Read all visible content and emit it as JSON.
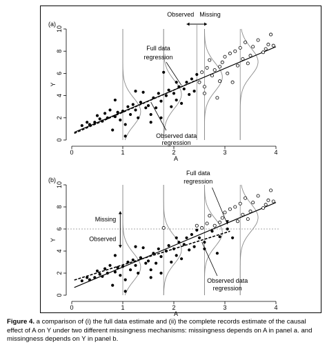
{
  "caption": {
    "label": "Figure 4.",
    "text": "a comparison of (i) the full data estimate and (ii) the complete records estimate of the causal effect of A on Y under two different missingness mechanisms: missingness depends on A in panel a. and missingness depends on Y in panel b."
  },
  "chart_data": [
    {
      "type": "scatter",
      "panel_label": "(a)",
      "xlabel": "A",
      "ylabel": "Y",
      "xlim": [
        0,
        4
      ],
      "ylim": [
        0,
        10
      ],
      "xticks": [
        "0",
        "1",
        "2",
        "3",
        "4"
      ],
      "yticks": [
        "0",
        "2",
        "4",
        "6",
        "8",
        "10"
      ],
      "annotations": {
        "observed": "Observed",
        "missing": "Missing",
        "full_data": [
          "Full data",
          "regression"
        ],
        "observed_data": [
          "Observed data",
          "regression"
        ]
      },
      "cutoff": {
        "axis": "x",
        "value": 2.45
      },
      "full_regression": {
        "intercept": 0.6,
        "slope": 1.95
      },
      "observed_regression": {
        "intercept": 0.5,
        "slope": 2.0,
        "x_range": [
          0.05,
          2.45
        ]
      },
      "density_curves_at_x": [
        1.0,
        1.8,
        2.6,
        3.3
      ],
      "series": [
        {
          "name": "",
          "marker": "filled",
          "points": [
            [
              0.2,
              1.3
            ],
            [
              0.3,
              1.6
            ],
            [
              0.35,
              1.4
            ],
            [
              0.45,
              1.6
            ],
            [
              0.5,
              2.2
            ],
            [
              0.55,
              1.9
            ],
            [
              0.6,
              1.7
            ],
            [
              0.65,
              2.4
            ],
            [
              0.7,
              2.0
            ],
            [
              0.75,
              2.7
            ],
            [
              0.8,
              0.9
            ],
            [
              0.85,
              2.1
            ],
            [
              0.9,
              2.5
            ],
            [
              0.95,
              1.8
            ],
            [
              1.0,
              2.6
            ],
            [
              1.05,
              1.4
            ],
            [
              1.1,
              3.0
            ],
            [
              1.15,
              2.3
            ],
            [
              1.2,
              3.2
            ],
            [
              1.25,
              2.7
            ],
            [
              1.3,
              2.0
            ],
            [
              1.35,
              3.4
            ],
            [
              1.4,
              4.3
            ],
            [
              1.45,
              2.9
            ],
            [
              1.5,
              3.1
            ],
            [
              1.55,
              2.3
            ],
            [
              1.6,
              3.8
            ],
            [
              1.65,
              2.9
            ],
            [
              1.7,
              4.2
            ],
            [
              1.75,
              3.5
            ],
            [
              1.8,
              6.1
            ],
            [
              1.85,
              4.0
            ],
            [
              1.9,
              4.5
            ],
            [
              1.95,
              3.0
            ],
            [
              2.0,
              4.2
            ],
            [
              2.05,
              3.6
            ],
            [
              2.1,
              4.8
            ],
            [
              2.15,
              3.3
            ],
            [
              2.2,
              4.6
            ],
            [
              2.25,
              5.2
            ],
            [
              2.3,
              4.1
            ],
            [
              2.35,
              5.5
            ],
            [
              2.4,
              4.4
            ],
            [
              2.45,
              5.9
            ],
            [
              1.05,
              0.35
            ],
            [
              0.85,
              3.6
            ],
            [
              1.25,
              4.4
            ],
            [
              1.55,
              1.6
            ],
            [
              1.75,
              2.0
            ],
            [
              2.05,
              5.2
            ]
          ]
        },
        {
          "name": "",
          "marker": "open",
          "points": [
            [
              2.5,
              5.2
            ],
            [
              2.55,
              6.1
            ],
            [
              2.6,
              4.8
            ],
            [
              2.65,
              6.5
            ],
            [
              2.7,
              7.2
            ],
            [
              2.75,
              5.8
            ],
            [
              2.8,
              6.3
            ],
            [
              2.85,
              3.8
            ],
            [
              2.9,
              6.6
            ],
            [
              2.95,
              7.0
            ],
            [
              3.0,
              7.5
            ],
            [
              3.05,
              6.0
            ],
            [
              3.1,
              7.8
            ],
            [
              3.15,
              5.2
            ],
            [
              3.2,
              8.0
            ],
            [
              3.25,
              6.7
            ],
            [
              3.3,
              8.3
            ],
            [
              3.35,
              7.3
            ],
            [
              3.4,
              8.8
            ],
            [
              3.45,
              6.9
            ],
            [
              3.55,
              8.4
            ],
            [
              3.65,
              9.0
            ],
            [
              3.75,
              7.9
            ],
            [
              3.85,
              8.6
            ],
            [
              3.9,
              9.5
            ],
            [
              3.95,
              8.5
            ],
            [
              2.6,
              4.2
            ],
            [
              2.9,
              5.3
            ],
            [
              3.5,
              7.6
            ],
            [
              3.8,
              8.2
            ]
          ]
        }
      ]
    },
    {
      "type": "scatter",
      "panel_label": "(b)",
      "xlabel": "A",
      "ylabel": "Y",
      "xlim": [
        0,
        4
      ],
      "ylim": [
        0,
        10
      ],
      "xticks": [
        "0",
        "1",
        "2",
        "3",
        "4"
      ],
      "yticks": [
        "0",
        "2",
        "4",
        "6",
        "8",
        "10"
      ],
      "annotations": {
        "observed": "Observed",
        "missing": "Missing",
        "full_data": [
          "Full data",
          "regression"
        ],
        "observed_data": [
          "Observed data",
          "regression"
        ]
      },
      "cutoff": {
        "axis": "y",
        "value": 6.0
      },
      "full_regression": {
        "intercept": 0.6,
        "slope": 1.95
      },
      "observed_regression": {
        "intercept": 1.3,
        "slope": 1.45,
        "x_range": [
          0.05,
          3.1
        ]
      },
      "density_curves_at_x": [
        1.0,
        1.8,
        2.6,
        3.3
      ],
      "series": [
        {
          "name": "",
          "marker": "filled",
          "points": [
            [
              0.2,
              1.3
            ],
            [
              0.3,
              1.6
            ],
            [
              0.35,
              1.4
            ],
            [
              0.45,
              1.6
            ],
            [
              0.5,
              2.2
            ],
            [
              0.55,
              1.9
            ],
            [
              0.6,
              1.7
            ],
            [
              0.65,
              2.4
            ],
            [
              0.7,
              2.0
            ],
            [
              0.75,
              2.7
            ],
            [
              0.8,
              0.9
            ],
            [
              0.85,
              2.1
            ],
            [
              0.9,
              2.5
            ],
            [
              0.95,
              1.8
            ],
            [
              1.0,
              2.6
            ],
            [
              1.05,
              1.4
            ],
            [
              1.1,
              3.0
            ],
            [
              1.15,
              2.3
            ],
            [
              1.2,
              3.2
            ],
            [
              1.25,
              2.7
            ],
            [
              1.3,
              2.0
            ],
            [
              1.35,
              3.4
            ],
            [
              1.4,
              4.3
            ],
            [
              1.45,
              2.9
            ],
            [
              1.5,
              3.1
            ],
            [
              1.55,
              2.3
            ],
            [
              1.6,
              3.8
            ],
            [
              1.65,
              2.9
            ],
            [
              1.7,
              4.2
            ],
            [
              1.75,
              3.5
            ],
            [
              1.85,
              4.0
            ],
            [
              1.9,
              4.5
            ],
            [
              1.95,
              3.0
            ],
            [
              2.0,
              4.2
            ],
            [
              2.05,
              3.6
            ],
            [
              2.1,
              4.8
            ],
            [
              2.15,
              3.3
            ],
            [
              2.2,
              4.6
            ],
            [
              2.25,
              5.2
            ],
            [
              2.3,
              4.1
            ],
            [
              2.35,
              5.5
            ],
            [
              2.4,
              4.4
            ],
            [
              2.45,
              5.9
            ],
            [
              2.5,
              5.2
            ],
            [
              2.6,
              4.8
            ],
            [
              2.75,
              5.8
            ],
            [
              2.85,
              3.8
            ],
            [
              3.05,
              6.0
            ],
            [
              3.15,
              5.2
            ],
            [
              1.05,
              0.35
            ],
            [
              0.85,
              3.6
            ],
            [
              1.25,
              4.4
            ],
            [
              1.55,
              1.6
            ],
            [
              1.75,
              2.0
            ],
            [
              2.05,
              5.2
            ],
            [
              2.6,
              4.2
            ],
            [
              2.9,
              5.3
            ]
          ]
        },
        {
          "name": "",
          "marker": "open",
          "points": [
            [
              1.8,
              6.1
            ],
            [
              2.45,
              6.3
            ],
            [
              2.55,
              6.1
            ],
            [
              2.65,
              6.5
            ],
            [
              2.7,
              7.2
            ],
            [
              2.8,
              6.3
            ],
            [
              2.9,
              6.6
            ],
            [
              2.95,
              7.0
            ],
            [
              3.0,
              7.5
            ],
            [
              3.1,
              7.8
            ],
            [
              3.2,
              8.0
            ],
            [
              3.25,
              6.7
            ],
            [
              3.3,
              8.3
            ],
            [
              3.35,
              7.3
            ],
            [
              3.4,
              8.8
            ],
            [
              3.45,
              6.9
            ],
            [
              3.55,
              8.4
            ],
            [
              3.65,
              9.0
            ],
            [
              3.75,
              7.9
            ],
            [
              3.85,
              8.6
            ],
            [
              3.9,
              9.5
            ],
            [
              3.95,
              8.5
            ],
            [
              3.5,
              7.6
            ],
            [
              3.8,
              8.2
            ]
          ]
        }
      ]
    }
  ]
}
